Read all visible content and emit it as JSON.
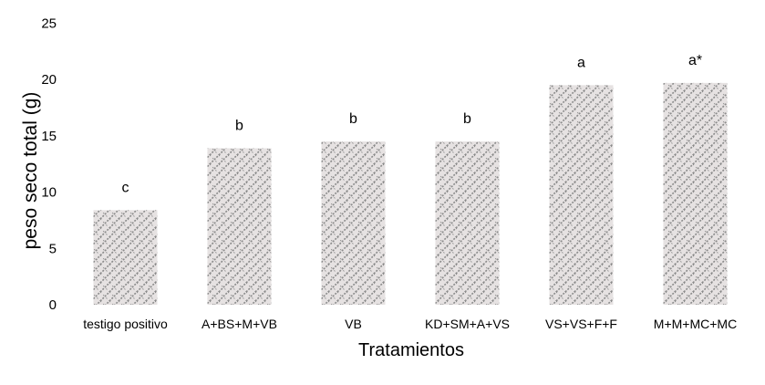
{
  "chart_data": {
    "type": "bar",
    "title": "",
    "xlabel": "Tratamientos",
    "ylabel": "peso seco total (g)",
    "ylim": [
      0,
      25
    ],
    "yticks": [
      0,
      5,
      10,
      15,
      20,
      25
    ],
    "grid": false,
    "legend": "none",
    "categories": [
      "testigo positivo",
      "A+BS+M+VB",
      "VB",
      "KD+SM+A+VS",
      "VS+VS+F+F",
      "M+M+MC+MC"
    ],
    "values": [
      8.4,
      13.9,
      14.5,
      14.5,
      19.5,
      19.7
    ],
    "significance_labels": [
      "c",
      "b",
      "b",
      "b",
      "a",
      "a*"
    ],
    "bar_fill": "#e6e2e2",
    "bar_pattern_color": "#8a8a8a"
  }
}
